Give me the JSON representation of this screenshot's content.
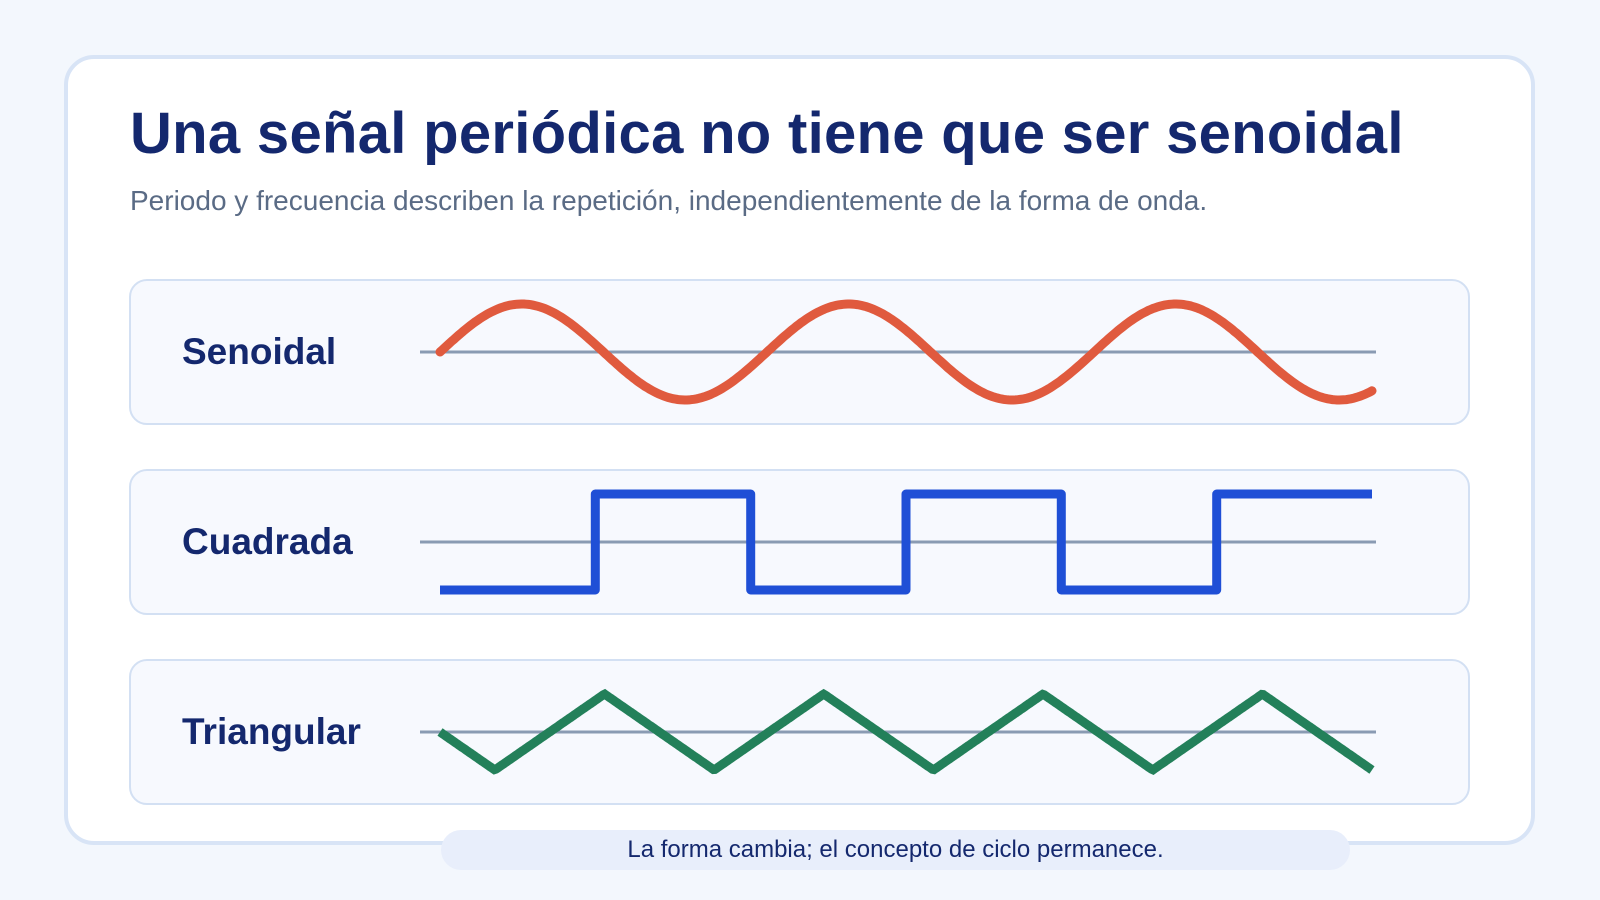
{
  "title": "Una señal periódica no tiene que ser senoidal",
  "subtitle": "Periodo y frecuencia describen la repetición, independientemente de la forma de onda.",
  "waves": [
    {
      "id": "sine",
      "label": "Senoidal",
      "shape": "sine",
      "cycles": 2.85,
      "color": "#e05a3e"
    },
    {
      "id": "square",
      "label": "Cuadrada",
      "shape": "square",
      "cycles": 3,
      "color": "#1f4fd6"
    },
    {
      "id": "triangle",
      "label": "Triangular",
      "shape": "triangle",
      "cycles": 4.25,
      "color": "#23805a"
    }
  ],
  "axis_color": "#8a9bb3",
  "footer": "La forma cambia; el concepto de ciclo permanece."
}
